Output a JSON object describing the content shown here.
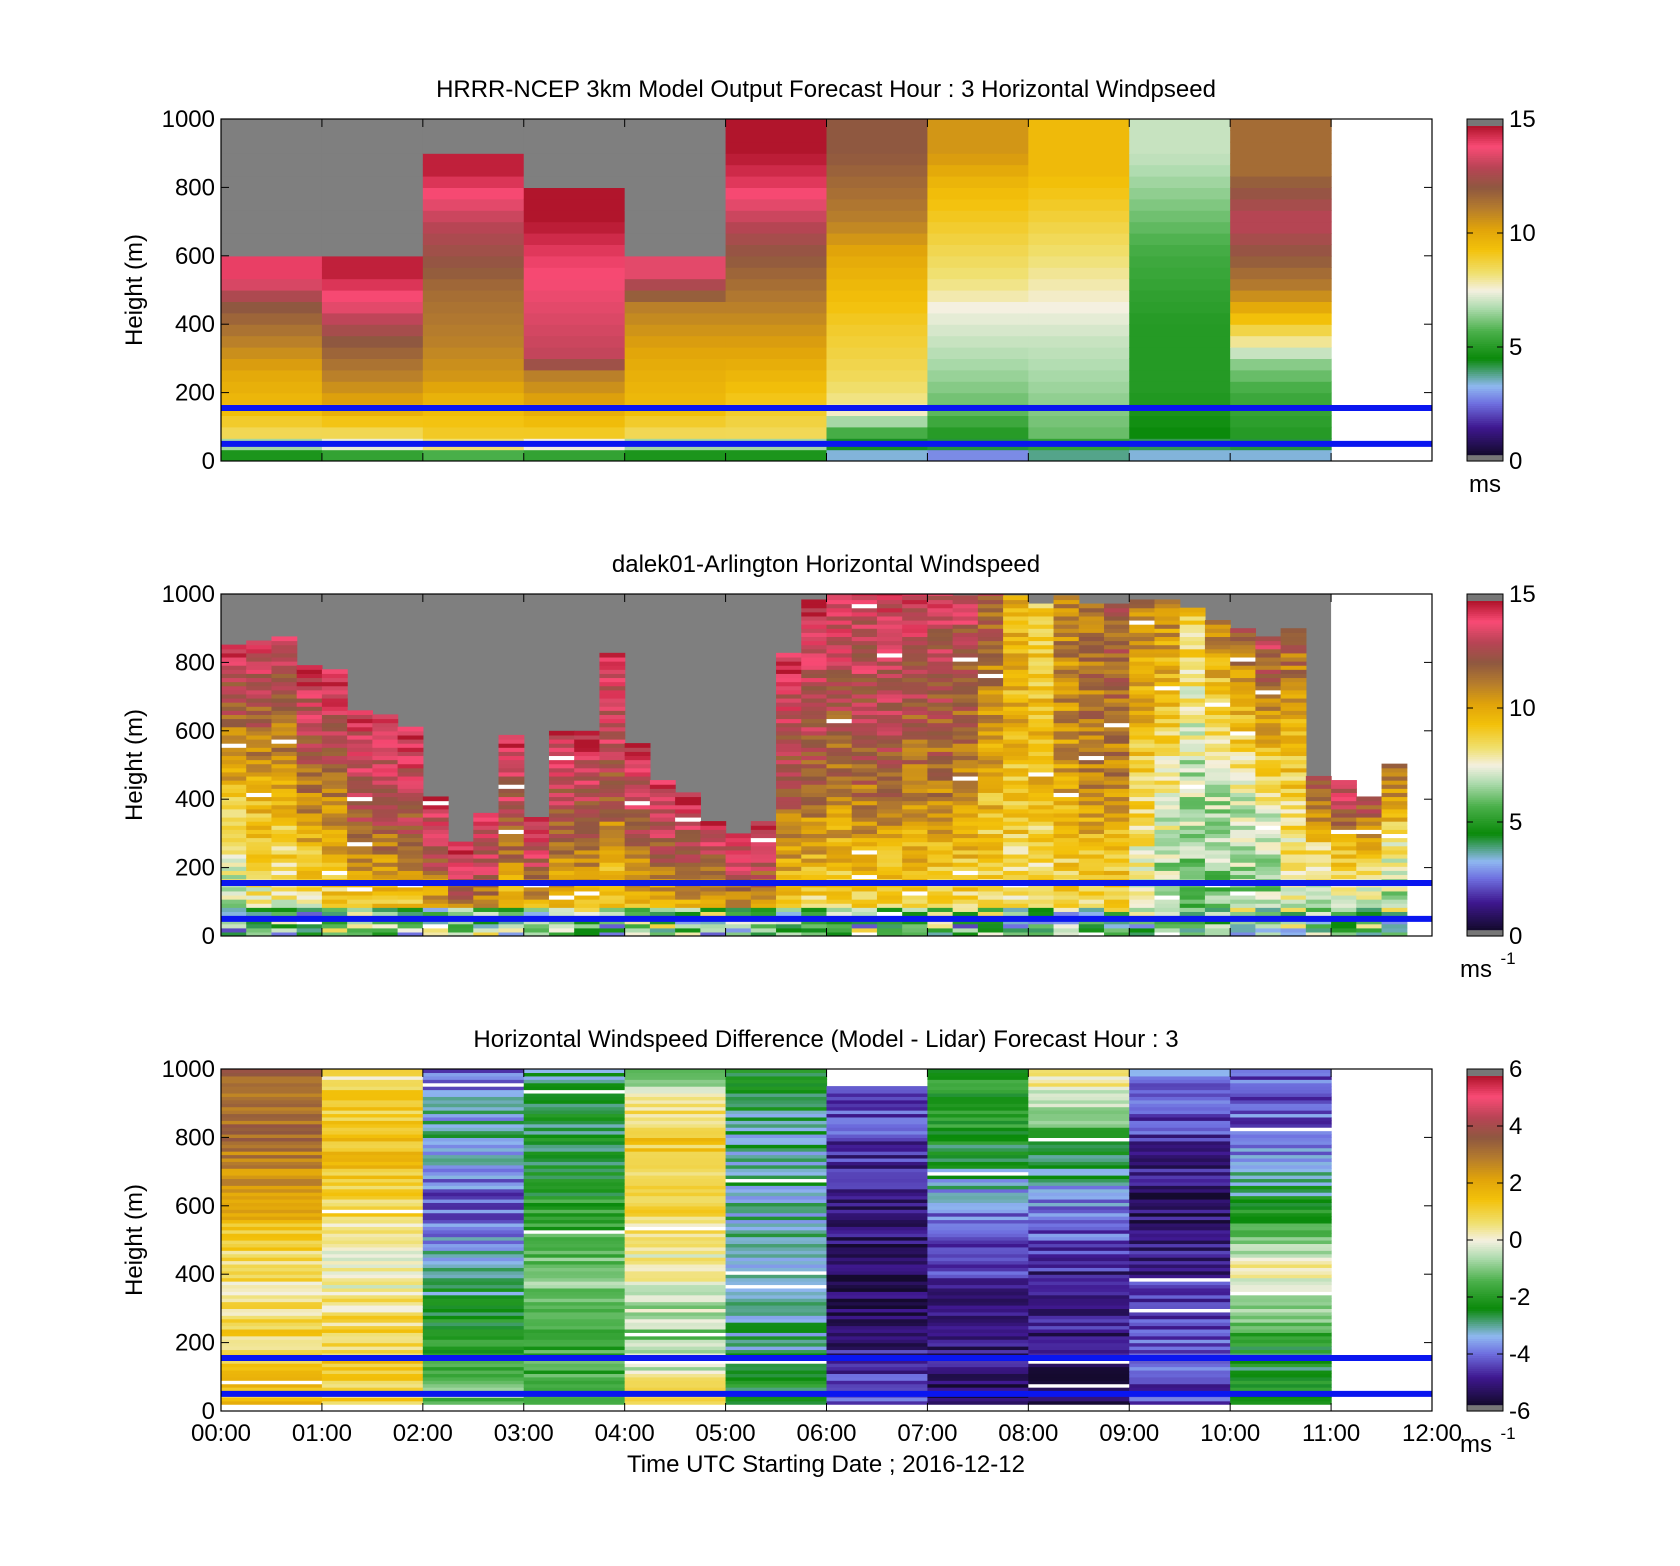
{
  "figure": {
    "xlabel": "Time UTC  Starting Date ; 2016-12-12",
    "x_ticks": [
      "00:00",
      "01:00",
      "02:00",
      "03:00",
      "04:00",
      "05:00",
      "06:00",
      "07:00",
      "08:00",
      "09:00",
      "10:00",
      "11:00",
      "12:00"
    ]
  },
  "chart_data": [
    {
      "type": "heatmap",
      "title": "HRRR-NCEP 3km Model Output   Forecast Hour : 3 Horizontal Windpseed",
      "ylabel": "Height (m)",
      "ylim": [
        0,
        1000
      ],
      "y_ticks": [
        "0",
        "200",
        "400",
        "600",
        "800",
        "1000"
      ],
      "xlim_hours": [
        0,
        12
      ],
      "colorbar": {
        "ticks": [
          "0",
          "5",
          "10",
          "15"
        ],
        "range": [
          0,
          15
        ],
        "unit": "ms"
      },
      "reference_lines_m": [
        50,
        155
      ],
      "columns_hours": [
        0,
        1,
        2,
        3,
        4,
        5,
        6,
        7,
        8,
        9,
        10
      ],
      "profiles_speed_vs_height": [
        {
          "t": 0,
          "top_m": 600,
          "levels": [
            [
              0,
              4
            ],
            [
              40,
              6
            ],
            [
              80,
              8.5
            ],
            [
              160,
              9.5
            ],
            [
              250,
              10
            ],
            [
              350,
              11
            ],
            [
              450,
              12
            ],
            [
              550,
              14
            ]
          ]
        },
        {
          "t": 1,
          "top_m": 600,
          "levels": [
            [
              0,
              4
            ],
            [
              40,
              7
            ],
            [
              80,
              8.5
            ],
            [
              160,
              10
            ],
            [
              250,
              11
            ],
            [
              350,
              12
            ],
            [
              450,
              13.5
            ],
            [
              550,
              14.5
            ]
          ]
        },
        {
          "t": 2,
          "top_m": 900,
          "levels": [
            [
              0,
              4
            ],
            [
              40,
              8
            ],
            [
              80,
              9
            ],
            [
              160,
              9.5
            ],
            [
              250,
              10.5
            ],
            [
              350,
              11
            ],
            [
              500,
              11.5
            ],
            [
              700,
              13
            ],
            [
              850,
              14.5
            ]
          ]
        },
        {
          "t": 3,
          "top_m": 800,
          "levels": [
            [
              0,
              4
            ],
            [
              40,
              7
            ],
            [
              80,
              9
            ],
            [
              160,
              10
            ],
            [
              250,
              11
            ],
            [
              300,
              13
            ],
            [
              450,
              13.5
            ],
            [
              600,
              14
            ],
            [
              750,
              15
            ]
          ]
        },
        {
          "t": 4,
          "top_m": 600,
          "levels": [
            [
              0,
              4
            ],
            [
              40,
              6
            ],
            [
              80,
              8.5
            ],
            [
              160,
              9.5
            ],
            [
              300,
              10
            ],
            [
              450,
              11
            ],
            [
              550,
              13.5
            ]
          ]
        },
        {
          "t": 5,
          "top_m": 1000,
          "levels": [
            [
              0,
              4
            ],
            [
              40,
              6
            ],
            [
              80,
              8.5
            ],
            [
              160,
              9
            ],
            [
              300,
              10
            ],
            [
              450,
              11
            ],
            [
              600,
              12
            ],
            [
              700,
              13
            ],
            [
              800,
              14
            ],
            [
              950,
              15
            ]
          ]
        },
        {
          "t": 6,
          "top_m": 1000,
          "levels": [
            [
              0,
              3
            ],
            [
              40,
              4
            ],
            [
              80,
              5.5
            ],
            [
              160,
              8
            ],
            [
              250,
              8.5
            ],
            [
              400,
              9
            ],
            [
              600,
              10
            ],
            [
              700,
              11
            ],
            [
              900,
              12
            ]
          ]
        },
        {
          "t": 7,
          "top_m": 1000,
          "levels": [
            [
              0,
              2
            ],
            [
              40,
              4
            ],
            [
              80,
              5
            ],
            [
              160,
              6
            ],
            [
              250,
              6.5
            ],
            [
              350,
              7
            ],
            [
              450,
              7.5
            ],
            [
              500,
              8
            ],
            [
              600,
              8.5
            ],
            [
              700,
              9
            ],
            [
              800,
              9.5
            ],
            [
              900,
              10.5
            ]
          ]
        },
        {
          "t": 8,
          "top_m": 1000,
          "levels": [
            [
              0,
              3
            ],
            [
              40,
              5
            ],
            [
              80,
              6
            ],
            [
              200,
              6.5
            ],
            [
              350,
              7
            ],
            [
              450,
              7.5
            ],
            [
              550,
              8
            ],
            [
              650,
              8.5
            ],
            [
              750,
              9
            ],
            [
              850,
              9.5
            ]
          ]
        },
        {
          "t": 9,
          "top_m": 1000,
          "levels": [
            [
              0,
              3
            ],
            [
              40,
              4
            ],
            [
              80,
              4.5
            ],
            [
              200,
              5
            ],
            [
              400,
              5
            ],
            [
              600,
              5.5
            ],
            [
              700,
              6
            ],
            [
              800,
              6.5
            ],
            [
              900,
              7
            ]
          ]
        },
        {
          "t": 10,
          "top_m": 1000,
          "levels": [
            [
              0,
              3
            ],
            [
              40,
              4
            ],
            [
              80,
              5
            ],
            [
              200,
              5.5
            ],
            [
              300,
              6.5
            ],
            [
              350,
              8
            ],
            [
              400,
              9
            ],
            [
              450,
              10
            ],
            [
              500,
              11
            ],
            [
              600,
              12
            ],
            [
              700,
              13
            ],
            [
              850,
              11.5
            ]
          ]
        }
      ]
    },
    {
      "type": "heatmap",
      "title": "dalek01-Arlington  Horizontal Windspeed",
      "ylabel": "Height (m)",
      "ylim": [
        0,
        1000
      ],
      "y_ticks": [
        "0",
        "200",
        "400",
        "600",
        "800",
        "1000"
      ],
      "xlim_hours": [
        0,
        12
      ],
      "colorbar": {
        "ticks": [
          "0",
          "5",
          "10",
          "15"
        ],
        "range": [
          0,
          15
        ],
        "unit": "ms",
        "unit_exp": "-1"
      },
      "reference_lines_m": [
        50,
        155
      ],
      "bins_per_hour": 4,
      "bin_tops_m": [
        850,
        860,
        870,
        790,
        770,
        660,
        640,
        610,
        400,
        270,
        350,
        580,
        340,
        600,
        590,
        820,
        560,
        450,
        410,
        330,
        290,
        330,
        820,
        980,
        1000,
        1000,
        1000,
        1000,
        1000,
        990,
        1000,
        990,
        970,
        990,
        970,
        970,
        980,
        980,
        950,
        920,
        900,
        870,
        900,
        460,
        450,
        400,
        500
      ],
      "bin_speed_surface_mid_top": [
        [
          6,
          9.5,
          14
        ],
        [
          7,
          10,
          14
        ],
        [
          7,
          10,
          13.5
        ],
        [
          7,
          11,
          14
        ],
        [
          8,
          11,
          14.5
        ],
        [
          8,
          12,
          14
        ],
        [
          8,
          12,
          14
        ],
        [
          8,
          12,
          14.5
        ],
        [
          8,
          12,
          14
        ],
        [
          8,
          12.5,
          14
        ],
        [
          8,
          12.5,
          14
        ],
        [
          8,
          12,
          14
        ],
        [
          8,
          12,
          14.5
        ],
        [
          8,
          12,
          14
        ],
        [
          8,
          12,
          14
        ],
        [
          8,
          12,
          14
        ],
        [
          8,
          12,
          14
        ],
        [
          8,
          12,
          14
        ],
        [
          8,
          12,
          14
        ],
        [
          8,
          11.5,
          14
        ],
        [
          8,
          12,
          14
        ],
        [
          8,
          12,
          14
        ],
        [
          8,
          12,
          14
        ],
        [
          8,
          12,
          14
        ],
        [
          8,
          11.5,
          14
        ],
        [
          8,
          12,
          13.5
        ],
        [
          8,
          12,
          13.5
        ],
        [
          8,
          11.5,
          13.5
        ],
        [
          8,
          11.5,
          13.5
        ],
        [
          8,
          11,
          13
        ],
        [
          8,
          10,
          12
        ],
        [
          8,
          9.5,
          10
        ],
        [
          8,
          9.5,
          9
        ],
        [
          8,
          10.5,
          11
        ],
        [
          8,
          11,
          11.5
        ],
        [
          8,
          11,
          12
        ],
        [
          7,
          9,
          11
        ],
        [
          6,
          8,
          11
        ],
        [
          6,
          7,
          9
        ],
        [
          6,
          7,
          11
        ],
        [
          6,
          7.5,
          12
        ],
        [
          6,
          8,
          13
        ],
        [
          7,
          9,
          12
        ],
        [
          7,
          8,
          13
        ],
        [
          6,
          9,
          14
        ],
        [
          6,
          8,
          13
        ],
        [
          6,
          8,
          12
        ]
      ]
    },
    {
      "type": "heatmap",
      "title": "Horizontal Windspeed Difference (Model - Lidar) Forecast Hour : 3",
      "ylabel": "Height (m)",
      "ylim": [
        0,
        1000
      ],
      "y_ticks": [
        "0",
        "200",
        "400",
        "600",
        "800",
        "1000"
      ],
      "xlim_hours": [
        0,
        12
      ],
      "colorbar": {
        "ticks": [
          "-6",
          "-4",
          "-2",
          "0",
          "2",
          "4",
          "6"
        ],
        "range": [
          -6,
          6
        ],
        "unit": "ms",
        "unit_exp": "-1"
      },
      "reference_lines_m": [
        50,
        155
      ],
      "columns_hours": [
        0,
        1,
        2,
        3,
        4,
        5,
        6,
        7,
        8,
        9,
        10
      ],
      "profiles_diff_vs_height": [
        {
          "t": 0,
          "levels": [
            [
              0,
              1.5
            ],
            [
              200,
              1
            ],
            [
              400,
              0.5
            ],
            [
              600,
              2
            ],
            [
              800,
              3
            ],
            [
              1000,
              3.5
            ]
          ]
        },
        {
          "t": 1,
          "levels": [
            [
              0,
              1
            ],
            [
              200,
              1
            ],
            [
              400,
              0
            ],
            [
              600,
              1
            ],
            [
              800,
              1.5
            ],
            [
              1000,
              0.5
            ]
          ]
        },
        {
          "t": 2,
          "levels": [
            [
              0,
              -1
            ],
            [
              200,
              -2
            ],
            [
              400,
              -3
            ],
            [
              600,
              -4.2
            ],
            [
              800,
              -3
            ],
            [
              1000,
              -4
            ]
          ]
        },
        {
          "t": 3,
          "levels": [
            [
              0,
              -2
            ],
            [
              200,
              -1.5
            ],
            [
              400,
              -1
            ],
            [
              600,
              -2
            ],
            [
              800,
              -2.5
            ],
            [
              1000,
              -3
            ]
          ]
        },
        {
          "t": 4,
          "levels": [
            [
              0,
              1
            ],
            [
              200,
              -1
            ],
            [
              400,
              0
            ],
            [
              600,
              1
            ],
            [
              800,
              1.2
            ],
            [
              1000,
              -1
            ]
          ]
        },
        {
          "t": 5,
          "levels": [
            [
              0,
              -2
            ],
            [
              200,
              -3
            ],
            [
              400,
              -3.5
            ],
            [
              600,
              -3
            ],
            [
              800,
              -3
            ],
            [
              1000,
              -2.5
            ]
          ]
        },
        {
          "t": 6,
          "levels": [
            [
              0,
              -4
            ],
            [
              200,
              -5
            ],
            [
              400,
              -5.5
            ],
            [
              600,
              -5
            ],
            [
              800,
              -4.5
            ],
            [
              950,
              -4
            ]
          ]
        },
        {
          "t": 7,
          "levels": [
            [
              0,
              -5.5
            ],
            [
              200,
              -5
            ],
            [
              400,
              -4.5
            ],
            [
              600,
              -3.8
            ],
            [
              800,
              -2
            ],
            [
              1000,
              -2
            ]
          ]
        },
        {
          "t": 8,
          "levels": [
            [
              0,
              -5.8
            ],
            [
              200,
              -5
            ],
            [
              400,
              -4.8
            ],
            [
              600,
              -3.8
            ],
            [
              800,
              -2
            ],
            [
              1000,
              1
            ]
          ]
        },
        {
          "t": 9,
          "levels": [
            [
              0,
              -4.5
            ],
            [
              200,
              -4.2
            ],
            [
              400,
              -4.8
            ],
            [
              600,
              -5.3
            ],
            [
              800,
              -4.5
            ],
            [
              1000,
              -3.5
            ]
          ]
        },
        {
          "t": 10,
          "levels": [
            [
              0,
              -2.5
            ],
            [
              200,
              -2.2
            ],
            [
              400,
              0.5
            ],
            [
              600,
              -2.5
            ],
            [
              800,
              -4
            ],
            [
              1000,
              -4.3
            ]
          ]
        }
      ]
    }
  ]
}
